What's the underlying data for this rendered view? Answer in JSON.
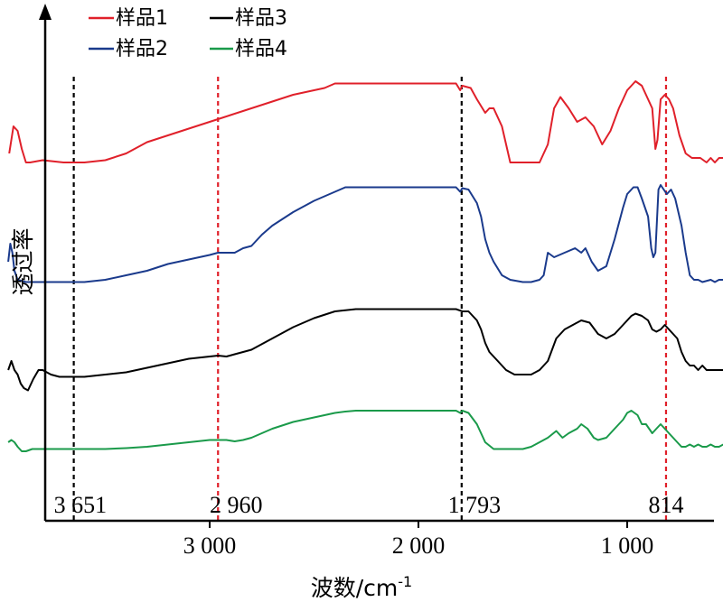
{
  "chart_data": {
    "type": "line",
    "xlabel": "波数/cm",
    "xlabel_sup": "-1",
    "ylabel": "透过率",
    "x_reversed": true,
    "xlim": [
      4000,
      400
    ],
    "xticks": [
      3000,
      2000,
      1000
    ],
    "xtick_labels": [
      "3 000",
      "2 000",
      "1 000"
    ],
    "y_ticks_shown": false,
    "legend": {
      "placement": "top-left",
      "entries": [
        {
          "label": "样品1",
          "color": "#e0202a"
        },
        {
          "label": "样品3",
          "color": "#000000"
        },
        {
          "label": "样品2",
          "color": "#1a3a8c"
        },
        {
          "label": "样品4",
          "color": "#1a9a4a"
        }
      ]
    },
    "reference_lines": [
      {
        "x": 3651,
        "label": "3 651",
        "color": "#000000",
        "style": "dashed"
      },
      {
        "x": 2960,
        "label": "2 960",
        "color": "#e0202a",
        "style": "dashed"
      },
      {
        "x": 1793,
        "label": "1 793",
        "color": "#000000",
        "style": "dashed"
      },
      {
        "x": 814,
        "label": "814",
        "color": "#e0202a",
        "style": "dashed"
      }
    ],
    "y_note": "relative transmittance, curves vertically offset (arbitrary units, 0 = bottom of plot, 100 = top)",
    "series": [
      {
        "name": "样品1",
        "color": "#e0202a",
        "points": [
          [
            3960,
            74
          ],
          [
            3940,
            80
          ],
          [
            3920,
            79
          ],
          [
            3900,
            75
          ],
          [
            3880,
            72
          ],
          [
            3860,
            72
          ],
          [
            3800,
            72.5
          ],
          [
            3700,
            72
          ],
          [
            3600,
            72
          ],
          [
            3500,
            72.5
          ],
          [
            3400,
            74
          ],
          [
            3300,
            76.5
          ],
          [
            3200,
            78
          ],
          [
            3100,
            79.5
          ],
          [
            3000,
            81
          ],
          [
            2900,
            82.5
          ],
          [
            2800,
            84
          ],
          [
            2700,
            85.5
          ],
          [
            2600,
            87
          ],
          [
            2500,
            88
          ],
          [
            2450,
            88.5
          ],
          [
            2400,
            89.5
          ],
          [
            2350,
            89.5
          ],
          [
            2300,
            89.5
          ],
          [
            2200,
            89.5
          ],
          [
            2100,
            89.5
          ],
          [
            2000,
            89.5
          ],
          [
            1900,
            89.5
          ],
          [
            1820,
            89.5
          ],
          [
            1800,
            88
          ],
          [
            1790,
            89
          ],
          [
            1750,
            88.5
          ],
          [
            1720,
            86
          ],
          [
            1680,
            83
          ],
          [
            1660,
            84
          ],
          [
            1640,
            84
          ],
          [
            1600,
            80
          ],
          [
            1560,
            72
          ],
          [
            1500,
            72
          ],
          [
            1420,
            72
          ],
          [
            1380,
            76
          ],
          [
            1350,
            84
          ],
          [
            1320,
            86.5
          ],
          [
            1280,
            84
          ],
          [
            1240,
            81
          ],
          [
            1200,
            82
          ],
          [
            1160,
            80
          ],
          [
            1120,
            76
          ],
          [
            1080,
            79
          ],
          [
            1040,
            84
          ],
          [
            1000,
            88
          ],
          [
            960,
            90
          ],
          [
            930,
            89
          ],
          [
            900,
            86
          ],
          [
            880,
            84
          ],
          [
            865,
            75
          ],
          [
            855,
            77
          ],
          [
            840,
            86
          ],
          [
            820,
            87
          ],
          [
            800,
            86
          ],
          [
            780,
            84
          ],
          [
            750,
            78
          ],
          [
            720,
            74
          ],
          [
            690,
            73
          ],
          [
            650,
            73
          ],
          [
            620,
            72
          ],
          [
            600,
            73
          ],
          [
            580,
            72
          ],
          [
            560,
            73
          ],
          [
            540,
            73
          ]
        ]
      },
      {
        "name": "样品2",
        "color": "#1a3a8c",
        "points": [
          [
            3965,
            50
          ],
          [
            3955,
            54
          ],
          [
            3945,
            52
          ],
          [
            3935,
            48
          ],
          [
            3920,
            46
          ],
          [
            3880,
            45.5
          ],
          [
            3800,
            45.5
          ],
          [
            3700,
            45.5
          ],
          [
            3600,
            45.5
          ],
          [
            3500,
            46
          ],
          [
            3400,
            47
          ],
          [
            3300,
            48
          ],
          [
            3200,
            49.5
          ],
          [
            3100,
            50.5
          ],
          [
            3000,
            51.5
          ],
          [
            2960,
            52
          ],
          [
            2920,
            52
          ],
          [
            2880,
            52
          ],
          [
            2840,
            53
          ],
          [
            2800,
            53.5
          ],
          [
            2750,
            56
          ],
          [
            2700,
            58
          ],
          [
            2600,
            61
          ],
          [
            2500,
            63.5
          ],
          [
            2400,
            65.5
          ],
          [
            2350,
            66.5
          ],
          [
            2300,
            66.5
          ],
          [
            2200,
            66.5
          ],
          [
            2100,
            66.5
          ],
          [
            2000,
            66.5
          ],
          [
            1900,
            66.5
          ],
          [
            1820,
            66.5
          ],
          [
            1800,
            65.5
          ],
          [
            1790,
            66.3
          ],
          [
            1760,
            66
          ],
          [
            1720,
            63
          ],
          [
            1700,
            60
          ],
          [
            1680,
            55
          ],
          [
            1660,
            52
          ],
          [
            1640,
            50
          ],
          [
            1600,
            47
          ],
          [
            1560,
            46
          ],
          [
            1500,
            45.5
          ],
          [
            1460,
            45.5
          ],
          [
            1420,
            46
          ],
          [
            1400,
            47
          ],
          [
            1380,
            52
          ],
          [
            1350,
            51
          ],
          [
            1300,
            52
          ],
          [
            1250,
            53
          ],
          [
            1220,
            52
          ],
          [
            1200,
            53
          ],
          [
            1170,
            50
          ],
          [
            1140,
            48
          ],
          [
            1100,
            49
          ],
          [
            1060,
            55
          ],
          [
            1020,
            62
          ],
          [
            1000,
            65
          ],
          [
            970,
            66.5
          ],
          [
            950,
            66.5
          ],
          [
            930,
            64
          ],
          [
            900,
            60
          ],
          [
            885,
            53
          ],
          [
            875,
            51
          ],
          [
            865,
            52
          ],
          [
            850,
            66
          ],
          [
            840,
            67
          ],
          [
            825,
            66
          ],
          [
            810,
            65
          ],
          [
            790,
            66
          ],
          [
            770,
            64
          ],
          [
            740,
            58
          ],
          [
            720,
            52
          ],
          [
            700,
            47
          ],
          [
            680,
            46
          ],
          [
            660,
            46
          ],
          [
            640,
            45.5
          ],
          [
            600,
            46
          ],
          [
            580,
            45.5
          ],
          [
            560,
            46
          ],
          [
            540,
            46
          ]
        ]
      },
      {
        "name": "样品3",
        "color": "#000000",
        "points": [
          [
            3965,
            26
          ],
          [
            3950,
            28
          ],
          [
            3935,
            26
          ],
          [
            3920,
            25
          ],
          [
            3905,
            23
          ],
          [
            3890,
            22
          ],
          [
            3870,
            21.5
          ],
          [
            3845,
            24
          ],
          [
            3820,
            26
          ],
          [
            3800,
            26
          ],
          [
            3760,
            25
          ],
          [
            3720,
            24.5
          ],
          [
            3700,
            24.5
          ],
          [
            3600,
            24.5
          ],
          [
            3500,
            25
          ],
          [
            3400,
            25.5
          ],
          [
            3300,
            26.5
          ],
          [
            3200,
            27.5
          ],
          [
            3100,
            28.5
          ],
          [
            3000,
            29
          ],
          [
            2960,
            29.2
          ],
          [
            2920,
            29
          ],
          [
            2880,
            29.5
          ],
          [
            2840,
            30
          ],
          [
            2800,
            30.5
          ],
          [
            2700,
            33
          ],
          [
            2600,
            35.5
          ],
          [
            2500,
            37.5
          ],
          [
            2400,
            39
          ],
          [
            2300,
            39.5
          ],
          [
            2200,
            39.5
          ],
          [
            2100,
            39.5
          ],
          [
            2000,
            39.5
          ],
          [
            1900,
            39.5
          ],
          [
            1820,
            39.5
          ],
          [
            1790,
            39
          ],
          [
            1760,
            39
          ],
          [
            1720,
            37
          ],
          [
            1700,
            35
          ],
          [
            1680,
            32
          ],
          [
            1660,
            30
          ],
          [
            1620,
            28
          ],
          [
            1580,
            26
          ],
          [
            1540,
            25
          ],
          [
            1500,
            25
          ],
          [
            1460,
            25
          ],
          [
            1420,
            26
          ],
          [
            1380,
            28
          ],
          [
            1340,
            33
          ],
          [
            1300,
            35
          ],
          [
            1260,
            36
          ],
          [
            1220,
            37
          ],
          [
            1180,
            36.5
          ],
          [
            1140,
            34
          ],
          [
            1100,
            33
          ],
          [
            1060,
            34
          ],
          [
            1020,
            36
          ],
          [
            980,
            38
          ],
          [
            960,
            38.5
          ],
          [
            930,
            38
          ],
          [
            900,
            37
          ],
          [
            880,
            35
          ],
          [
            860,
            34.5
          ],
          [
            840,
            35
          ],
          [
            820,
            36
          ],
          [
            800,
            35
          ],
          [
            780,
            34
          ],
          [
            760,
            33
          ],
          [
            740,
            30
          ],
          [
            720,
            28
          ],
          [
            700,
            27
          ],
          [
            680,
            27
          ],
          [
            660,
            26
          ],
          [
            640,
            27
          ],
          [
            620,
            26
          ],
          [
            600,
            26
          ],
          [
            580,
            26
          ],
          [
            560,
            26
          ],
          [
            540,
            26
          ]
        ]
      },
      {
        "name": "样品4",
        "color": "#1a9a4a",
        "points": [
          [
            3965,
            10
          ],
          [
            3950,
            10.5
          ],
          [
            3935,
            10
          ],
          [
            3920,
            9
          ],
          [
            3900,
            8
          ],
          [
            3880,
            8
          ],
          [
            3850,
            8.5
          ],
          [
            3800,
            8.5
          ],
          [
            3700,
            8.5
          ],
          [
            3600,
            8.5
          ],
          [
            3500,
            8.5
          ],
          [
            3400,
            8.7
          ],
          [
            3300,
            9
          ],
          [
            3200,
            9.5
          ],
          [
            3100,
            10
          ],
          [
            3000,
            10.5
          ],
          [
            2960,
            10.5
          ],
          [
            2920,
            10.5
          ],
          [
            2880,
            10.2
          ],
          [
            2840,
            10.5
          ],
          [
            2800,
            11
          ],
          [
            2700,
            13
          ],
          [
            2600,
            14.5
          ],
          [
            2500,
            15.5
          ],
          [
            2400,
            16.5
          ],
          [
            2350,
            16.8
          ],
          [
            2300,
            17
          ],
          [
            2200,
            17
          ],
          [
            2100,
            17
          ],
          [
            2000,
            17
          ],
          [
            1900,
            17
          ],
          [
            1820,
            17
          ],
          [
            1800,
            16.5
          ],
          [
            1790,
            17
          ],
          [
            1760,
            16.5
          ],
          [
            1720,
            14
          ],
          [
            1700,
            12
          ],
          [
            1680,
            10
          ],
          [
            1640,
            8.5
          ],
          [
            1600,
            8.5
          ],
          [
            1540,
            8.5
          ],
          [
            1500,
            8.5
          ],
          [
            1460,
            9
          ],
          [
            1420,
            10
          ],
          [
            1380,
            11
          ],
          [
            1340,
            12.5
          ],
          [
            1310,
            11
          ],
          [
            1280,
            12
          ],
          [
            1240,
            13
          ],
          [
            1220,
            14
          ],
          [
            1190,
            13
          ],
          [
            1160,
            11
          ],
          [
            1140,
            10.5
          ],
          [
            1100,
            11
          ],
          [
            1060,
            13
          ],
          [
            1020,
            15
          ],
          [
            1000,
            16.5
          ],
          [
            980,
            17
          ],
          [
            950,
            16
          ],
          [
            930,
            14
          ],
          [
            910,
            14
          ],
          [
            880,
            12
          ],
          [
            860,
            13
          ],
          [
            840,
            14
          ],
          [
            820,
            13
          ],
          [
            800,
            12
          ],
          [
            780,
            11
          ],
          [
            760,
            10
          ],
          [
            740,
            9
          ],
          [
            720,
            9
          ],
          [
            700,
            9.5
          ],
          [
            680,
            9
          ],
          [
            660,
            9.5
          ],
          [
            640,
            9
          ],
          [
            620,
            9
          ],
          [
            600,
            9.5
          ],
          [
            580,
            9
          ],
          [
            560,
            9
          ],
          [
            540,
            9.5
          ]
        ]
      }
    ]
  }
}
